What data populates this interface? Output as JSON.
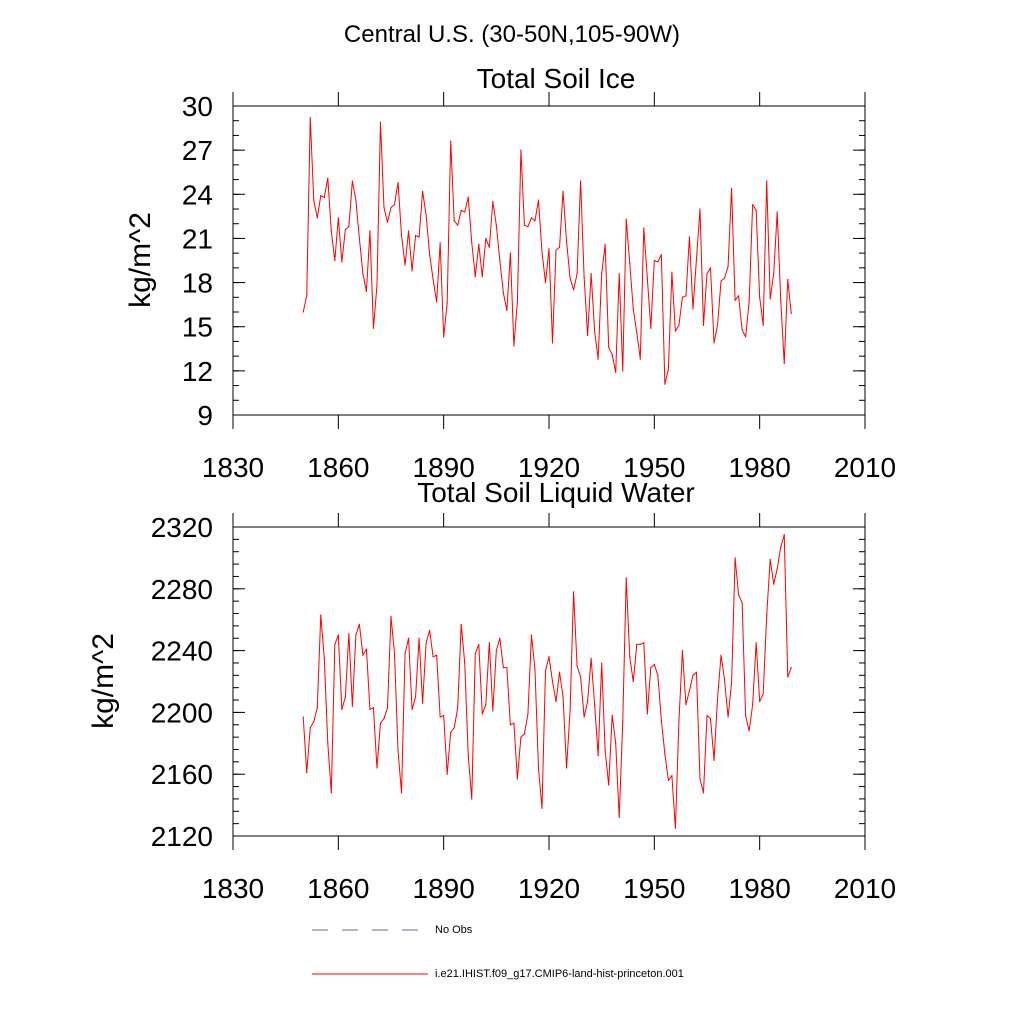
{
  "suptitle": "Central U.S. (30-50N,105-90W)",
  "legend": {
    "entries": [
      {
        "label": "No Obs",
        "color": "#6b6b8a",
        "style": "dashed"
      },
      {
        "label": "i.e21.IHIST.f09_g17.CMIP6-land-hist-princeton.001",
        "color": "#ff0000",
        "style": "solid"
      }
    ]
  },
  "chart_data": [
    {
      "type": "line",
      "title": "Total Soil Ice",
      "ylabel": "kg/m^2",
      "xlabel": "",
      "xlim": [
        1830,
        2010
      ],
      "ylim": [
        9,
        30
      ],
      "xticks": [
        1830,
        1860,
        1890,
        1920,
        1950,
        1980,
        2010
      ],
      "yticks": [
        9,
        12,
        15,
        18,
        21,
        24,
        27,
        30
      ],
      "series": [
        {
          "name": "i.e21.IHIST.f09_g17.CMIP6-land-hist-princeton.001",
          "color": "#ff0000",
          "x_start": 1850,
          "values": [
            16.0,
            17.1,
            29.2,
            23.6,
            22.4,
            23.9,
            23.8,
            25.1,
            21.5,
            19.5,
            22.4,
            19.4,
            21.6,
            21.8,
            24.9,
            23.6,
            21.0,
            18.6,
            17.4,
            21.5,
            14.9,
            17.8,
            28.9,
            23.1,
            22.1,
            23.1,
            23.3,
            24.8,
            21.2,
            19.2,
            21.5,
            18.8,
            21.2,
            21.1,
            24.2,
            22.6,
            19.9,
            18.2,
            16.7,
            20.7,
            14.3,
            16.6,
            27.6,
            22.2,
            21.9,
            22.9,
            22.8,
            23.8,
            20.7,
            18.4,
            20.6,
            18.4,
            21.0,
            20.4,
            23.5,
            21.9,
            19.5,
            17.3,
            16.1,
            20.0,
            13.7,
            16.7,
            27.0,
            21.9,
            21.8,
            22.4,
            22.2,
            23.6,
            20.1,
            18.0,
            20.3,
            13.9,
            20.2,
            20.4,
            24.2,
            20.8,
            18.3,
            17.5,
            18.6,
            24.9,
            18.4,
            14.4,
            18.6,
            14.7,
            12.8,
            18.6,
            20.6,
            13.6,
            13.1,
            11.9,
            18.6,
            12.0,
            22.3,
            19.3,
            16.2,
            14.6,
            12.8,
            21.7,
            18.3,
            14.9,
            19.5,
            19.4,
            19.9,
            11.1,
            12.1,
            18.7,
            14.7,
            15.1,
            17.0,
            17.1,
            21.1,
            16.2,
            19.6,
            23.0,
            15.1,
            18.6,
            19.0,
            13.9,
            15.1,
            18.1,
            18.3,
            19.1,
            24.4,
            16.8,
            17.1,
            14.8,
            14.3,
            16.7,
            23.3,
            22.9,
            17.0,
            15.1,
            24.9,
            16.9,
            18.6,
            22.8,
            16.8,
            12.5,
            18.2,
            15.9
          ]
        }
      ]
    },
    {
      "type": "line",
      "title": "Total Soil Liquid Water",
      "ylabel": "kg/m^2",
      "xlabel": "",
      "xlim": [
        1830,
        2010
      ],
      "ylim": [
        2120,
        2320
      ],
      "xticks": [
        1830,
        1860,
        1890,
        1920,
        1950,
        1980,
        2010
      ],
      "yticks": [
        2120,
        2160,
        2200,
        2240,
        2280,
        2320
      ],
      "series": [
        {
          "name": "i.e21.IHIST.f09_g17.CMIP6-land-hist-princeton.001",
          "color": "#ff0000",
          "x_start": 1850,
          "values": [
            2197,
            2161,
            2190,
            2194,
            2203,
            2263,
            2235,
            2180,
            2148,
            2244,
            2250,
            2202,
            2210,
            2251,
            2204,
            2250,
            2257,
            2237,
            2241,
            2202,
            2203,
            2164,
            2193,
            2196,
            2203,
            2262,
            2238,
            2175,
            2148,
            2238,
            2248,
            2202,
            2210,
            2248,
            2206,
            2245,
            2253,
            2236,
            2237,
            2197,
            2198,
            2160,
            2187,
            2190,
            2203,
            2257,
            2232,
            2172,
            2144,
            2238,
            2244,
            2199,
            2205,
            2245,
            2201,
            2240,
            2248,
            2229,
            2229,
            2192,
            2193,
            2157,
            2184,
            2186,
            2199,
            2250,
            2228,
            2164,
            2138,
            2227,
            2236,
            2220,
            2207,
            2226,
            2210,
            2164,
            2201,
            2278,
            2230,
            2223,
            2197,
            2207,
            2235,
            2205,
            2172,
            2232,
            2175,
            2153,
            2198,
            2180,
            2132,
            2194,
            2287,
            2236,
            2220,
            2244,
            2244,
            2245,
            2199,
            2229,
            2231,
            2224,
            2195,
            2173,
            2156,
            2159,
            2125,
            2194,
            2240,
            2205,
            2214,
            2224,
            2226,
            2157,
            2148,
            2198,
            2196,
            2169,
            2209,
            2237,
            2221,
            2197,
            2219,
            2300,
            2276,
            2271,
            2198,
            2188,
            2205,
            2245,
            2207,
            2212,
            2263,
            2299,
            2283,
            2293,
            2307,
            2315,
            2223,
            2229
          ]
        }
      ]
    }
  ]
}
